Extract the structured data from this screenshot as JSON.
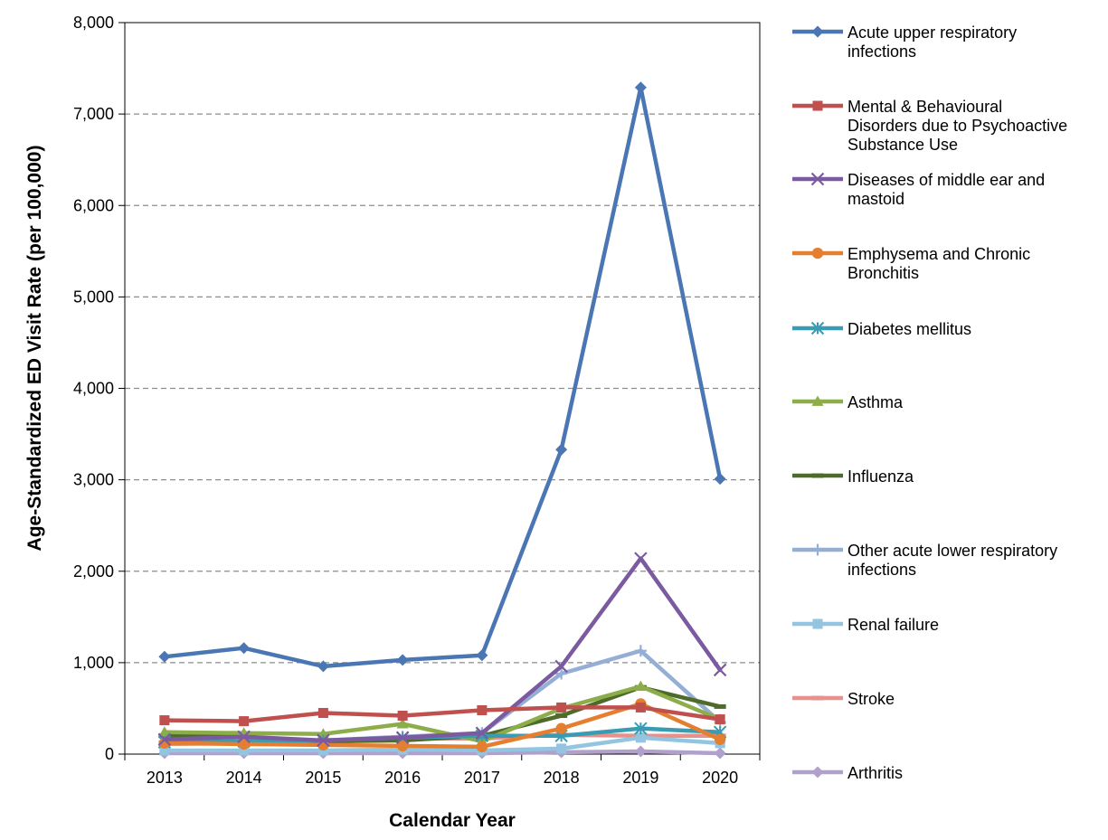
{
  "chart_data": {
    "type": "line",
    "title": "",
    "xlabel": "Calendar Year",
    "ylabel": "Age-Standardized ED Visit Rate (per 100,000)",
    "ylim": [
      0,
      8000
    ],
    "y_ticks": [
      0,
      1000,
      2000,
      3000,
      4000,
      5000,
      6000,
      7000,
      8000
    ],
    "y_tick_labels": [
      "0",
      "1,000",
      "2,000",
      "3,000",
      "4,000",
      "5,000",
      "6,000",
      "7,000",
      "8,000"
    ],
    "grid": "horizontal dashed",
    "legend_position": "right",
    "categories": [
      "2013",
      "2014",
      "2015",
      "2016",
      "2017",
      "2018",
      "2019",
      "2020"
    ],
    "series": [
      {
        "name": "Acute upper respiratory infections",
        "color": "#4a76b3",
        "marker": "diamond",
        "values": [
          1065,
          1160,
          960,
          1030,
          1080,
          3330,
          7290,
          3010
        ]
      },
      {
        "name": "Mental & Behavioural Disorders due to Psychoactive Substance Use",
        "color": "#c0504d",
        "marker": "square",
        "values": [
          370,
          360,
          450,
          420,
          480,
          510,
          510,
          380
        ]
      },
      {
        "name": "Diseases of middle ear and mastoid",
        "color": "#7b5aa0",
        "marker": "x",
        "values": [
          160,
          190,
          150,
          180,
          230,
          960,
          2140,
          920
        ]
      },
      {
        "name": "Emphysema and Chronic Bronchitis",
        "color": "#e47f2f",
        "marker": "circle",
        "values": [
          120,
          110,
          100,
          90,
          80,
          280,
          550,
          160
        ]
      },
      {
        "name": "Diabetes mellitus",
        "color": "#3a9bb2",
        "marker": "asterisk",
        "values": [
          130,
          140,
          150,
          180,
          200,
          200,
          280,
          240
        ]
      },
      {
        "name": "Asthma",
        "color": "#8dad4a",
        "marker": "triangle",
        "values": [
          240,
          230,
          220,
          330,
          140,
          500,
          740,
          380
        ]
      },
      {
        "name": "Influenza",
        "color": "#4d6b2a",
        "marker": "dash",
        "values": [
          200,
          190,
          140,
          150,
          200,
          420,
          730,
          520
        ]
      },
      {
        "name": "Other acute lower respiratory infections",
        "color": "#94aed6",
        "marker": "plus",
        "values": [
          140,
          150,
          150,
          190,
          230,
          880,
          1130,
          350
        ]
      },
      {
        "name": "Renal failure",
        "color": "#93c5e0",
        "marker": "square",
        "values": [
          40,
          40,
          40,
          50,
          40,
          60,
          180,
          120
        ]
      },
      {
        "name": "Stroke",
        "color": "#e8908c",
        "marker": "dash",
        "values": [
          110,
          120,
          130,
          170,
          170,
          210,
          200,
          200
        ]
      },
      {
        "name": "Arthritis",
        "color": "#b0a0cc",
        "marker": "diamond",
        "values": [
          10,
          10,
          10,
          10,
          10,
          20,
          30,
          10
        ]
      }
    ],
    "legend": [
      {
        "lines": [
          "Acute upper respiratory",
          "infections"
        ]
      },
      {
        "lines": [
          "Mental & Behavioural",
          "Disorders due to Psychoactive",
          "Substance Use"
        ]
      },
      {
        "lines": [
          "Diseases of middle ear and",
          "mastoid"
        ]
      },
      {
        "lines": [
          "Emphysema and Chronic",
          "Bronchitis"
        ]
      },
      {
        "lines": [
          "Diabetes mellitus"
        ]
      },
      {
        "lines": [
          "Asthma"
        ]
      },
      {
        "lines": [
          "Influenza"
        ]
      },
      {
        "lines": [
          "Other acute lower respiratory",
          "infections"
        ]
      },
      {
        "lines": [
          "Renal failure"
        ]
      },
      {
        "lines": [
          "Stroke"
        ]
      },
      {
        "lines": [
          "Arthritis"
        ]
      }
    ]
  }
}
